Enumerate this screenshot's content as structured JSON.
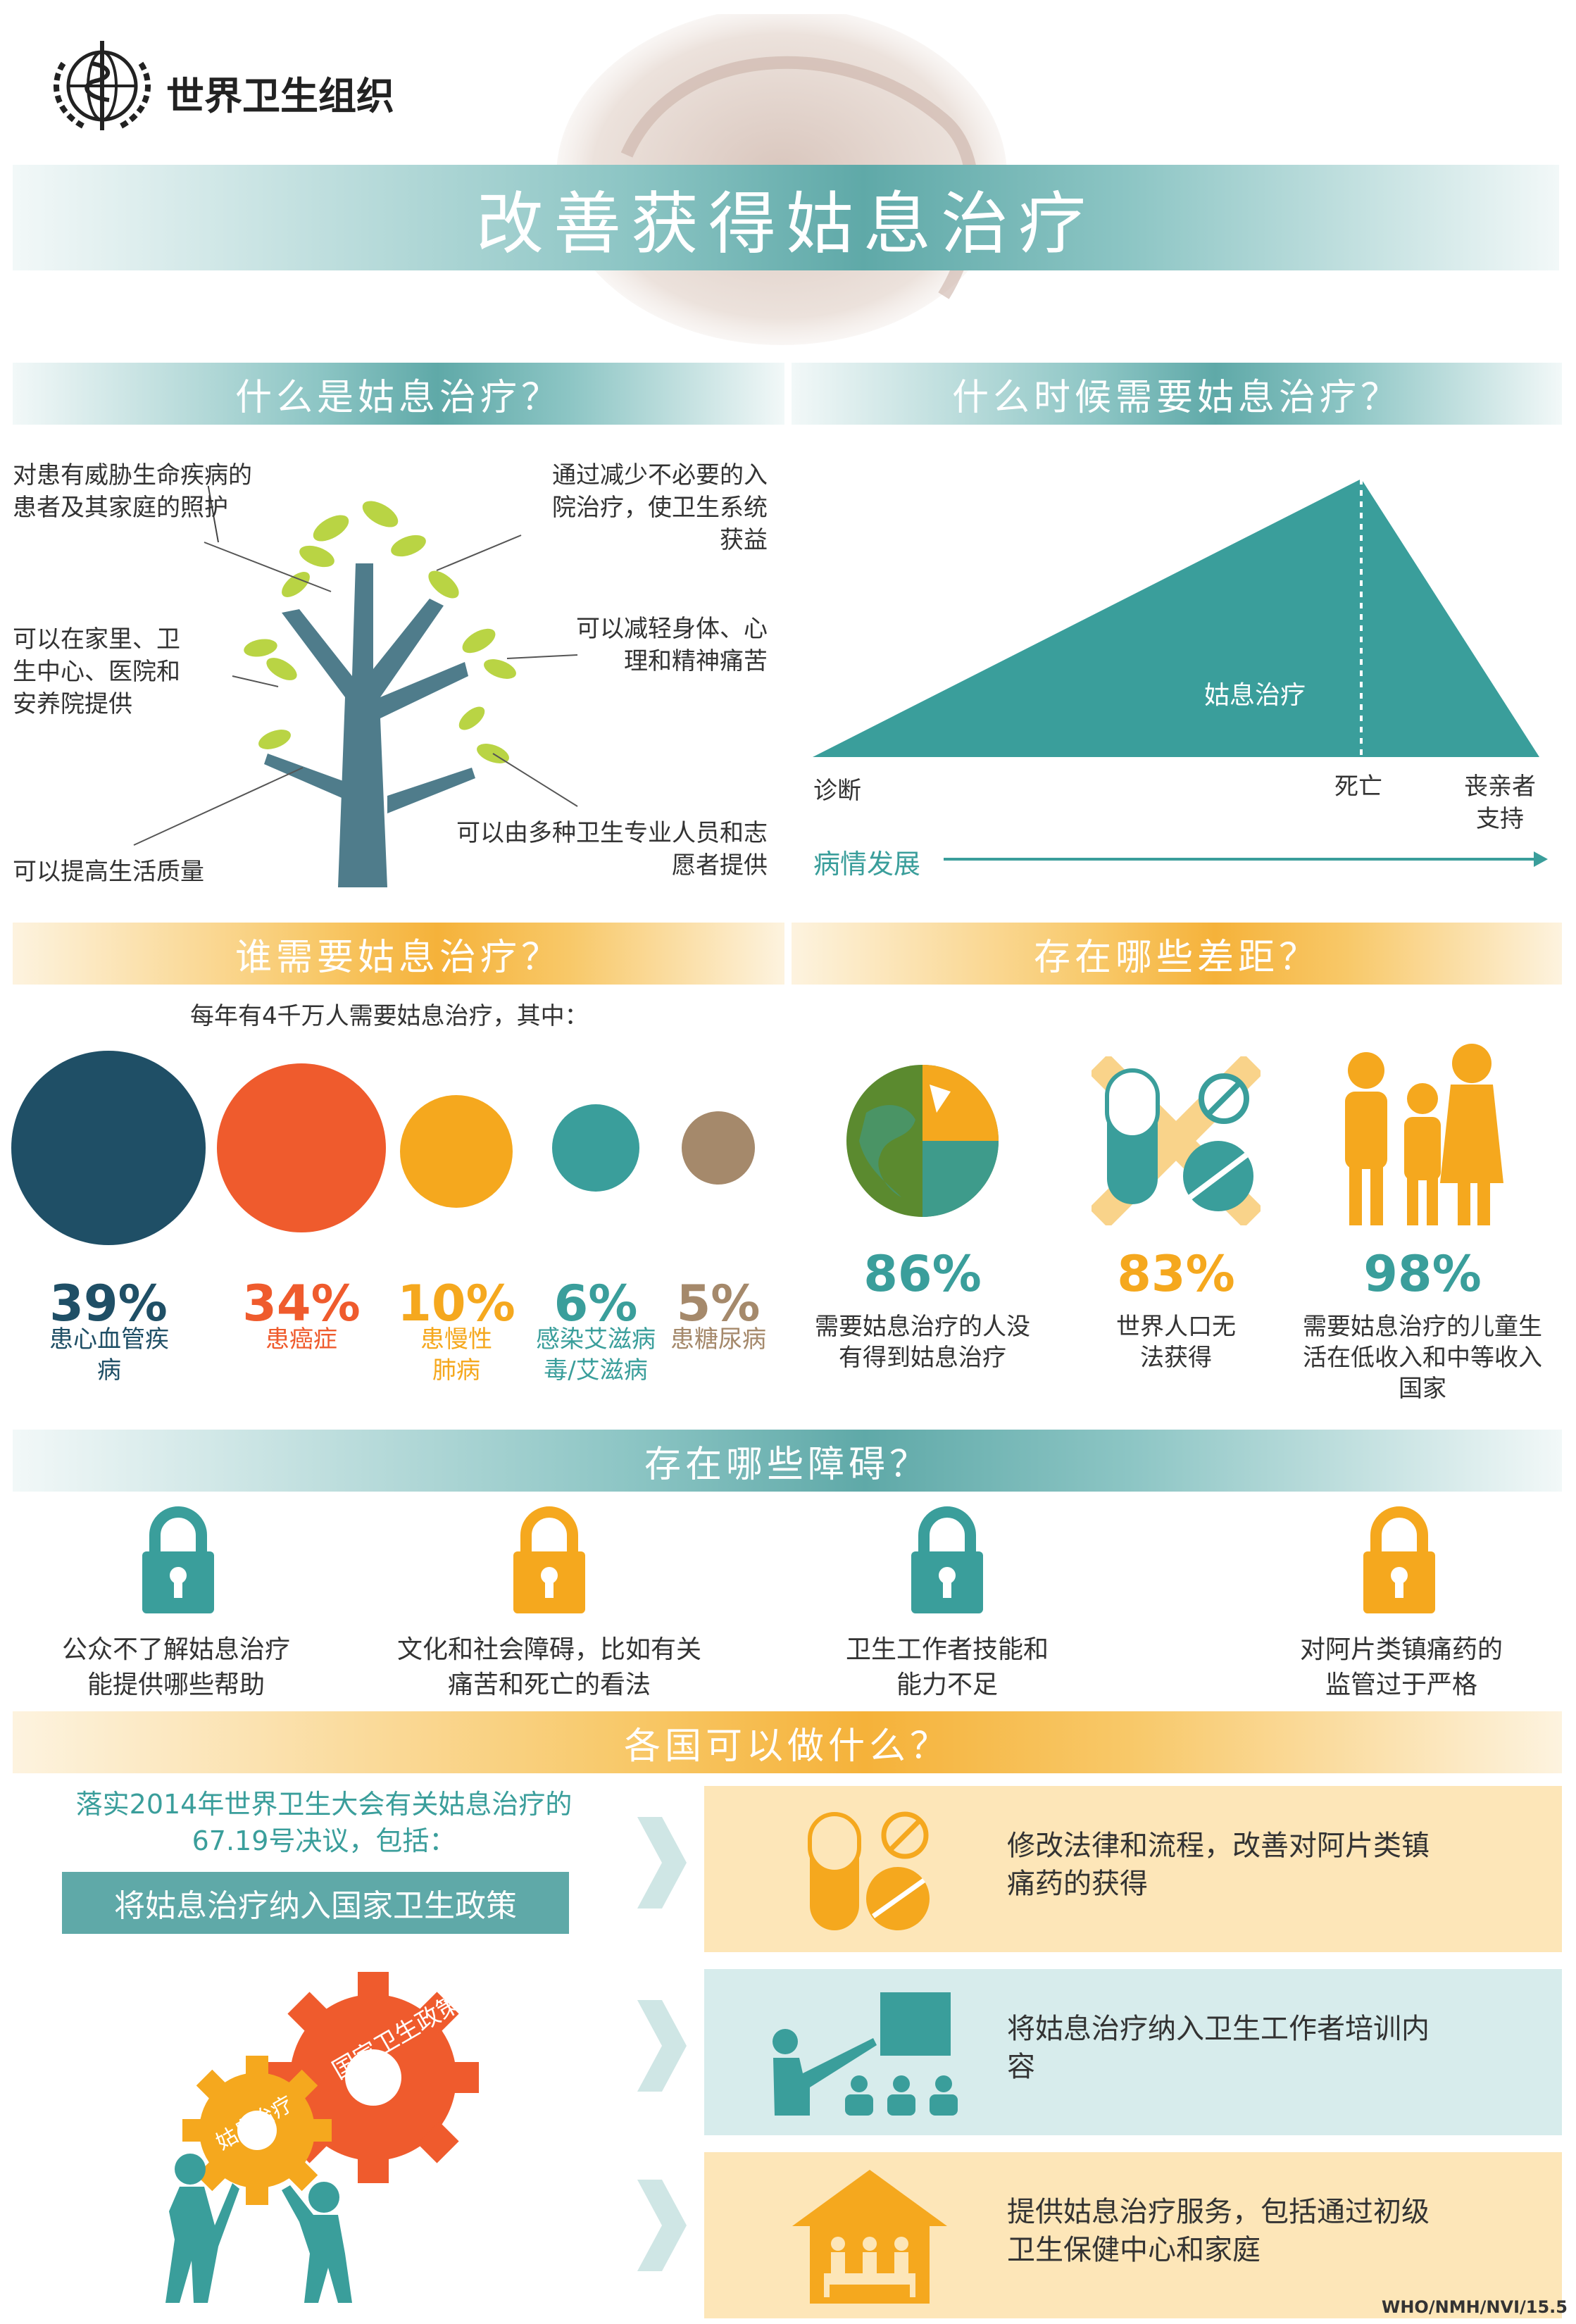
{
  "org": {
    "name": "世界卫生组织",
    "logo_icon": "who-emblem-icon"
  },
  "title": "改善获得姑息治疗",
  "sections": {
    "what": {
      "heading": "什么是姑息治疗？",
      "points": [
        "对患有威胁生命疾病的 患者及其家庭的照护",
        "可以在家里、卫生中心、医院和安养院提供",
        "可以提高生活质量",
        "通过减少不必要的入院治疗，使卫生系统获益",
        "可以减轻身体、心理和精神痛苦",
        "可以由多种卫生专业人员和志愿者提供"
      ]
    },
    "when": {
      "heading": "什么时候需要姑息治疗？",
      "area_label": "姑息治疗",
      "x_labels": [
        "诊断",
        "死亡",
        "丧亲者支持"
      ],
      "progress_label": "病情发展",
      "colors": {
        "area": "#3a9e9b"
      }
    },
    "who": {
      "heading": "谁需要姑息治疗？",
      "intro": "每年有4千万人需要姑息治疗，其中：",
      "items": [
        {
          "pct": "39%",
          "label": "患心血管疾病",
          "value": 39,
          "color": "#1f4f66"
        },
        {
          "pct": "34%",
          "label": "患癌症",
          "value": 34,
          "color": "#ef5b2d"
        },
        {
          "pct": "10%",
          "label": "患慢性肺病",
          "value": 10,
          "color": "#f5a81e"
        },
        {
          "pct": "6%",
          "label": "感染艾滋病毒/艾滋病",
          "value": 6,
          "color": "#3a9e9b"
        },
        {
          "pct": "5%",
          "label": "患糖尿病",
          "value": 5,
          "color": "#a5896b"
        }
      ]
    },
    "gaps": {
      "heading": "存在哪些差距？",
      "items": [
        {
          "pct": "86%",
          "label": "需要姑息治疗的人没有得到姑息治疗",
          "color": "#3a9e9b",
          "icon": "globe-icon"
        },
        {
          "pct": "83%",
          "label": "世界人口无法获得",
          "color": "#f5a81e",
          "icon": "crossed-pills-icon"
        },
        {
          "pct": "98%",
          "label": "需要姑息治疗的儿童生活在低收入和中等收入国家",
          "color": "#3a9e9b",
          "icon": "children-icon"
        }
      ]
    },
    "barriers": {
      "heading": "存在哪些障碍？",
      "items": [
        {
          "label": "公众不了解姑息治疗能提供哪些帮助",
          "color": "#3a9e9b"
        },
        {
          "label": "文化和社会障碍，比如有关痛苦和死亡的看法",
          "color": "#f5a81e"
        },
        {
          "label": "卫生工作者技能和能力不足",
          "color": "#3a9e9b"
        },
        {
          "label": "对阿片类镇痛药的监管过于严格",
          "color": "#f5a81e"
        }
      ]
    },
    "actions": {
      "heading": "各国可以做什么？",
      "intro": "落实2014年世界卫生大会有关姑息治疗的67.19号决议，包括：",
      "policy_button": "将姑息治疗纳入国家卫生政策",
      "gear_labels": [
        "国家卫生政策",
        "姑息治疗"
      ],
      "items": [
        {
          "label": "修改法律和流程，改善对阿片类镇痛药的获得",
          "icon": "pills-icon"
        },
        {
          "label": "将姑息治疗纳入卫生工作者培训内容",
          "icon": "training-icon"
        },
        {
          "label": "提供姑息治疗服务，包括通过初级卫生保健中心和家庭",
          "icon": "home-care-icon"
        }
      ]
    }
  },
  "footer_code": "WHO/NMH/NVI/15.5"
}
